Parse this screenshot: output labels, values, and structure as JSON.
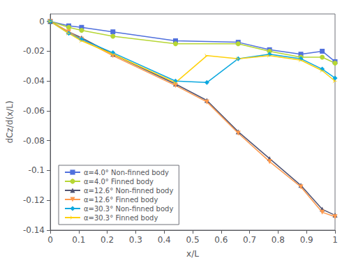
{
  "chart_data": {
    "type": "line",
    "xlabel": "x/L",
    "ylabel": "dCz/d(x/L)",
    "xlim": [
      0.0,
      1.0
    ],
    "ylim": [
      -0.14,
      0.005
    ],
    "xticks": [
      0.0,
      0.1,
      0.2,
      0.3,
      0.4,
      0.5,
      0.6,
      0.7,
      0.8,
      0.9,
      1.0
    ],
    "yticks": [
      0.0,
      -0.02,
      -0.04,
      -0.06,
      -0.08,
      -0.1,
      -0.12,
      -0.14
    ],
    "grid": false,
    "legend": "lower left",
    "series": [
      {
        "name": "α=4.0° Non-finned body",
        "marker": "square",
        "x": [
          0.0,
          0.065,
          0.11,
          0.22,
          0.44,
          0.66,
          0.77,
          0.88,
          0.955,
          1.0
        ],
        "values": [
          0.0,
          -0.003,
          -0.004,
          -0.007,
          -0.013,
          -0.014,
          -0.019,
          -0.022,
          -0.02,
          -0.027
        ]
      },
      {
        "name": "α=4.0° Finned body",
        "marker": "circle",
        "x": [
          0.0,
          0.065,
          0.11,
          0.22,
          0.44,
          0.66,
          0.77,
          0.88,
          0.955,
          1.0
        ],
        "values": [
          0.0,
          -0.004,
          -0.006,
          -0.01,
          -0.015,
          -0.015,
          -0.02,
          -0.024,
          -0.024,
          -0.028
        ]
      },
      {
        "name": "α=12.6° Non-finned body",
        "marker": "triangle_up",
        "x": [
          0.0,
          0.065,
          0.11,
          0.22,
          0.44,
          0.55,
          0.66,
          0.77,
          0.88,
          0.955,
          1.0
        ],
        "values": [
          0.0,
          -0.007,
          -0.011,
          -0.022,
          -0.042,
          -0.053,
          -0.074,
          -0.092,
          -0.11,
          -0.126,
          -0.13
        ]
      },
      {
        "name": "α=12.6° Finned body",
        "marker": "triangle_down",
        "x": [
          0.0,
          0.065,
          0.11,
          0.22,
          0.44,
          0.55,
          0.66,
          0.77,
          0.88,
          0.955,
          1.0
        ],
        "values": [
          0.0,
          -0.007,
          -0.012,
          -0.023,
          -0.043,
          -0.054,
          -0.075,
          -0.094,
          -0.111,
          -0.128,
          -0.131
        ]
      },
      {
        "name": "α=30.3° Non-finned body",
        "marker": "diamond",
        "x": [
          0.0,
          0.065,
          0.11,
          0.22,
          0.44,
          0.55,
          0.66,
          0.77,
          0.88,
          0.955,
          1.0
        ],
        "values": [
          0.0,
          -0.008,
          -0.012,
          -0.021,
          -0.04,
          -0.041,
          -0.025,
          -0.022,
          -0.025,
          -0.032,
          -0.038
        ]
      },
      {
        "name": "α=30.3° Finned body",
        "marker": "tri_right",
        "x": [
          0.0,
          0.065,
          0.11,
          0.22,
          0.44,
          0.55,
          0.66,
          0.77,
          0.88,
          0.955,
          1.0
        ],
        "values": [
          0.0,
          -0.008,
          -0.013,
          -0.022,
          -0.041,
          -0.023,
          -0.025,
          -0.023,
          -0.026,
          -0.033,
          -0.04
        ]
      }
    ]
  }
}
